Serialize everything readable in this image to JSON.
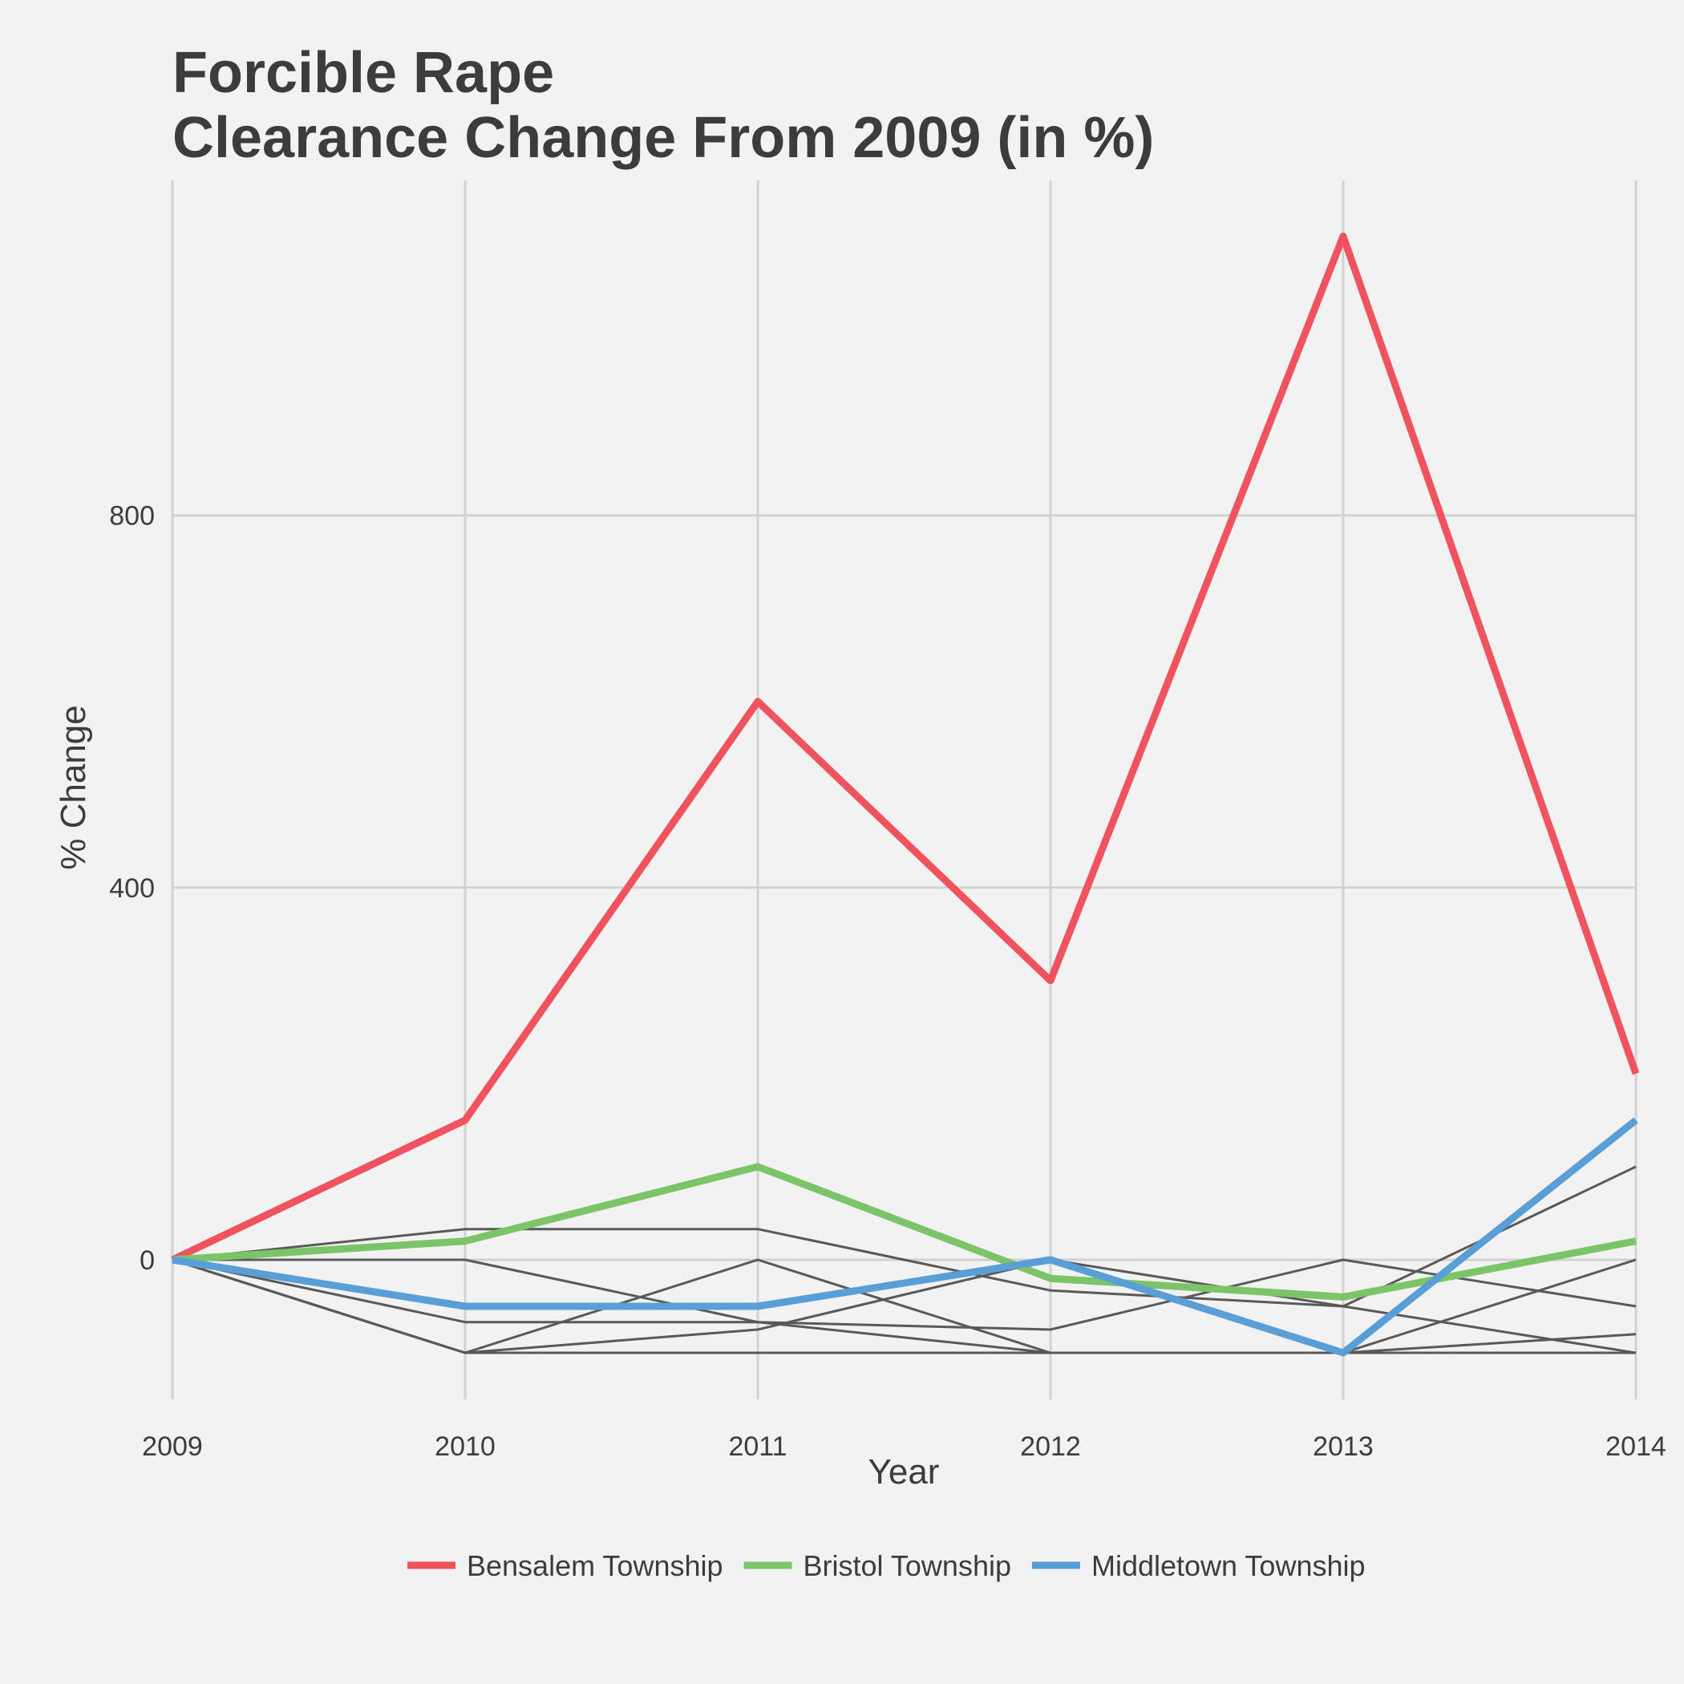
{
  "chart_data": {
    "type": "line",
    "title": [
      "Forcible Rape",
      "Clearance Change From 2009 (in %)"
    ],
    "xlabel": "Year",
    "ylabel": "% Change",
    "x": [
      2009,
      2010,
      2011,
      2012,
      2013,
      2014
    ],
    "x_tick_labels": [
      "2009",
      "2010",
      "2011",
      "2012",
      "2013",
      "2014"
    ],
    "y_ticks": [
      0,
      400,
      800
    ],
    "y_tick_labels": [
      "0",
      "400",
      "800"
    ],
    "xlim": [
      2009,
      2014
    ],
    "ylim": [
      -150,
      1160
    ],
    "grid": true,
    "legend_position": "bottom",
    "background_series_color": "#595959",
    "series": [
      {
        "values": [
          0,
          33,
          33,
          -33,
          -50,
          100
        ],
        "highlight": false
      },
      {
        "values": [
          0,
          0,
          -67,
          -100,
          -100,
          -100
        ],
        "highlight": false
      },
      {
        "values": [
          0,
          -67,
          -67,
          -75,
          0,
          -50
        ],
        "highlight": false
      },
      {
        "values": [
          0,
          -100,
          0,
          -100,
          -100,
          0
        ],
        "highlight": false
      },
      {
        "values": [
          0,
          -100,
          -75,
          0,
          -50,
          -100
        ],
        "highlight": false
      },
      {
        "values": [
          0,
          -100,
          -100,
          -100,
          -100,
          -80
        ],
        "highlight": false
      },
      {
        "name": "Bensalem Township",
        "color": "#f0525e",
        "values": [
          0,
          150,
          600,
          300,
          1100,
          200
        ],
        "highlight": true
      },
      {
        "name": "Bristol Township",
        "color": "#7bc467",
        "values": [
          0,
          20,
          100,
          -20,
          -40,
          20
        ],
        "highlight": true
      },
      {
        "name": "Middletown Township",
        "color": "#5a9ed8",
        "values": [
          0,
          -50,
          -50,
          0,
          -100,
          150
        ],
        "highlight": true
      }
    ]
  }
}
